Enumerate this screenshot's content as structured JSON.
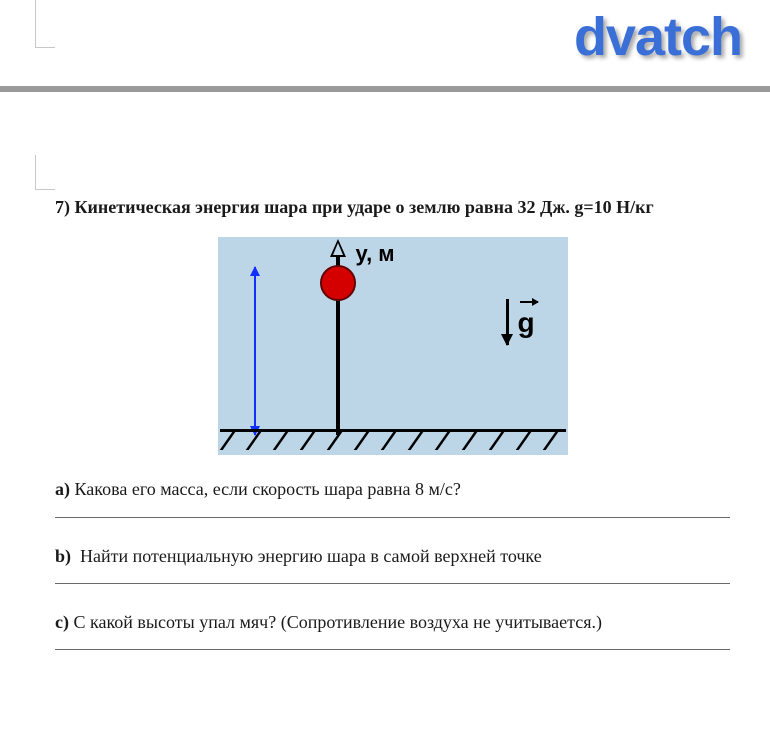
{
  "watermark": "dvatch",
  "colors": {
    "watermark": "#3a6fd8",
    "divider": "#9a9a9a",
    "diagram_bg": "#bcd6e8",
    "ball_fill": "#d40000",
    "ball_border": "#600000",
    "height_arrow": "#1030ff",
    "text": "#1a1a1a"
  },
  "question": {
    "number": "7)",
    "title": "Кинетическая энергия шара при ударе о землю равна 32 Дж. g=10 Н/кг"
  },
  "diagram": {
    "axis_label": "у, м",
    "g_label": "g",
    "hatch_count": 13
  },
  "subquestions": {
    "a": {
      "label": "a)",
      "text": "Какова его масса, если скорость шара равна 8 м/с?"
    },
    "b": {
      "label": "b)",
      "text": "Найти потенциальную энергию шара в самой верхней точке"
    },
    "c": {
      "label": "c)",
      "text": "С какой высоты упал мяч? (Сопротивление воздуха не учитывается.)"
    }
  }
}
